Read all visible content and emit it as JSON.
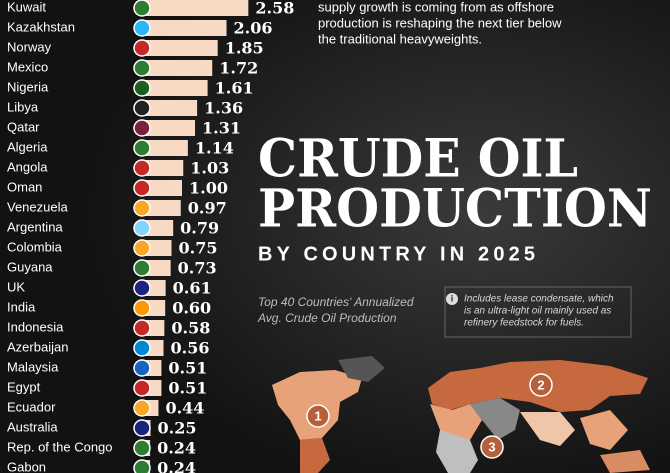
{
  "chart_data": {
    "type": "bar",
    "orientation": "horizontal",
    "title": [
      "CRUDE OIL",
      "PRODUCTION"
    ],
    "subtitle": "BY COUNTRY IN 2025",
    "note": [
      "Top 40 Countries' Annualized",
      "Avg. Crude Oil Production"
    ],
    "categories": [
      "Kuwait",
      "Kazakhstan",
      "Norway",
      "Mexico",
      "Nigeria",
      "Libya",
      "Qatar",
      "Algeria",
      "Angola",
      "Oman",
      "Venezuela",
      "Argentina",
      "Colombia",
      "Guyana",
      "UK",
      "India",
      "Indonesia",
      "Azerbaijan",
      "Malaysia",
      "Egypt",
      "Ecuador",
      "Australia",
      "Rep. of the Congo",
      "Gabon"
    ],
    "values": [
      2.58,
      2.06,
      1.85,
      1.72,
      1.61,
      1.36,
      1.31,
      1.14,
      1.03,
      1.0,
      0.97,
      0.79,
      0.75,
      0.73,
      0.61,
      0.6,
      0.58,
      0.56,
      0.51,
      0.51,
      0.44,
      0.25,
      0.24,
      0.24
    ],
    "value_labels": [
      "2.58",
      "2.06",
      "1.85",
      "1.72",
      "1.61",
      "1.36",
      "1.31",
      "1.14",
      "1.03",
      "1.00",
      "0.97",
      "0.79",
      "0.75",
      "0.73",
      "0.61",
      "0.60",
      "0.58",
      "0.56",
      "0.51",
      "0.51",
      "0.44",
      "0.25",
      "0.24",
      "0.24"
    ],
    "color": "#f7d9c4"
  },
  "intro": [
    "supply growth is coming from as offshore",
    "production is reshaping the next tier below",
    "the traditional heavyweights."
  ],
  "info": [
    "Includes lease condensate, which",
    "is an ultra-light oil mainly used as",
    "refinery feedstock for fuels."
  ],
  "map": {
    "markers": [
      "1",
      "2",
      "3"
    ]
  }
}
